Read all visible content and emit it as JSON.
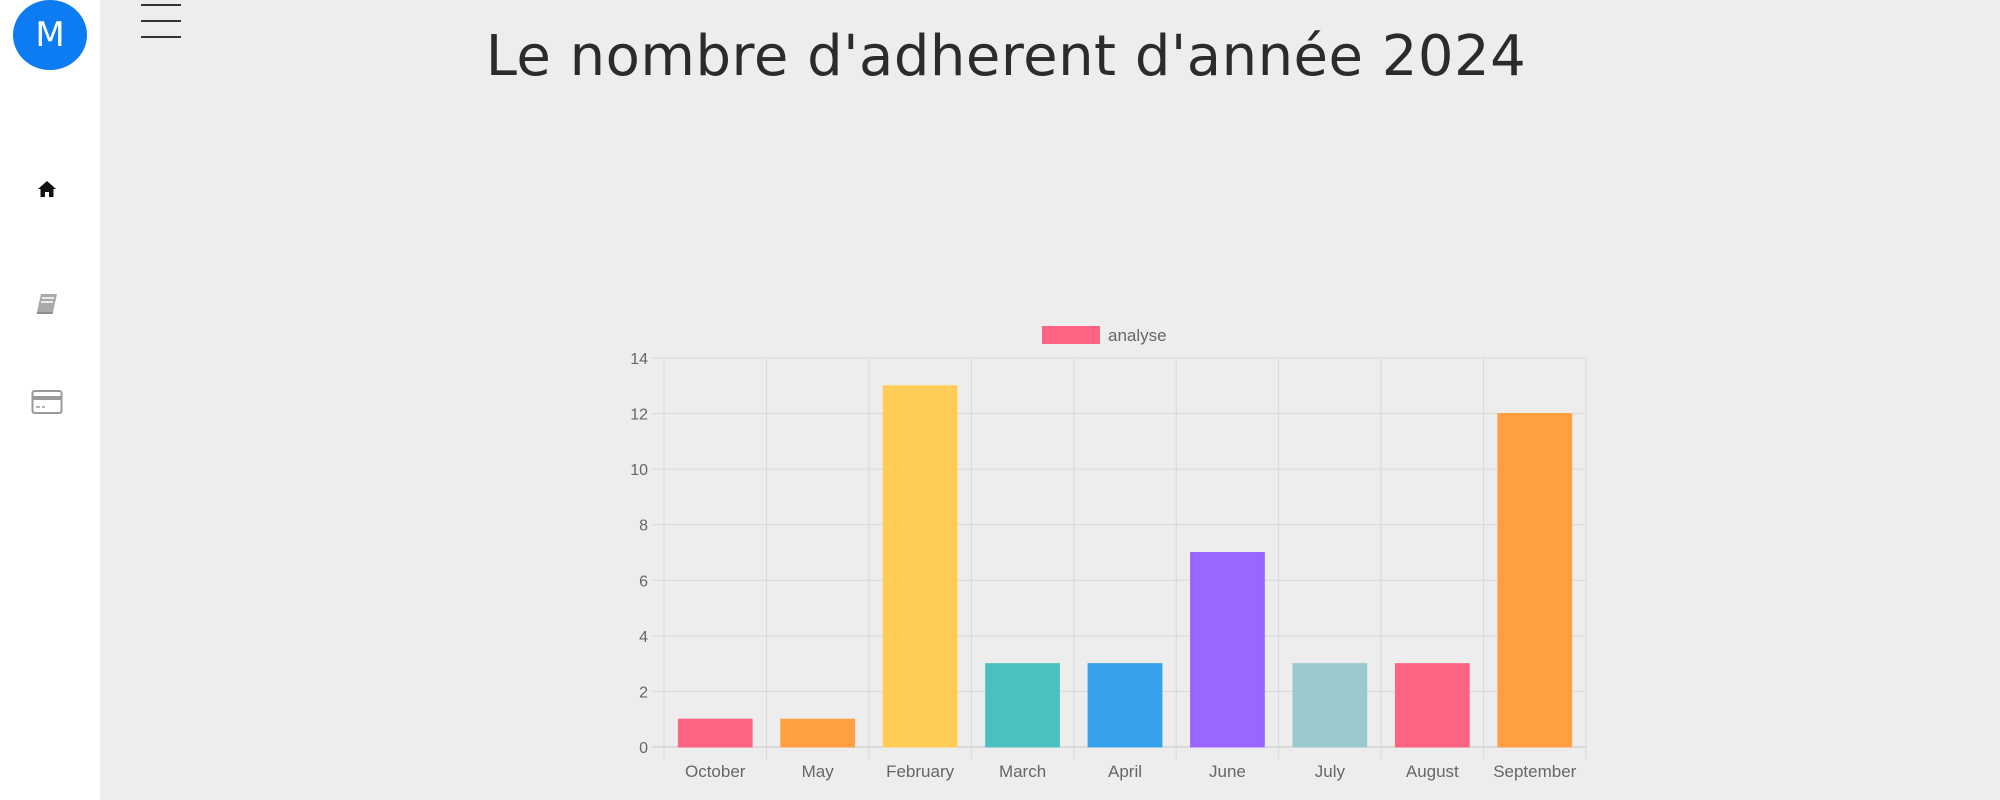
{
  "sidebar": {
    "avatar_letter": "M",
    "items": [
      {
        "icon": "home-icon"
      },
      {
        "icon": "book-icon"
      },
      {
        "icon": "credit-card-icon"
      }
    ]
  },
  "header": {
    "menu_icon": "hamburger-menu-icon",
    "title": "Le nombre d'adherent d'année 2024"
  },
  "chart_data": {
    "type": "bar",
    "title": "",
    "xlabel": "",
    "ylabel": "",
    "categories": [
      "October",
      "May",
      "February",
      "March",
      "April",
      "June",
      "July",
      "August",
      "September"
    ],
    "series": [
      {
        "name": "analyse",
        "values": [
          1,
          1,
          13,
          3,
          3,
          7,
          3,
          3,
          12
        ]
      }
    ],
    "bar_colors": [
      "#ff6384",
      "#ff9f40",
      "#ffcd56",
      "#4bc0c0",
      "#36a2eb",
      "#9966ff",
      "#9ac9cd",
      "#ff6384",
      "#ff9f40"
    ],
    "legend_color": "#ff6384",
    "ylim": [
      0,
      14
    ],
    "yticks": [
      0,
      2,
      4,
      6,
      8,
      10,
      12,
      14
    ],
    "grid": true,
    "legend_position": "top"
  }
}
